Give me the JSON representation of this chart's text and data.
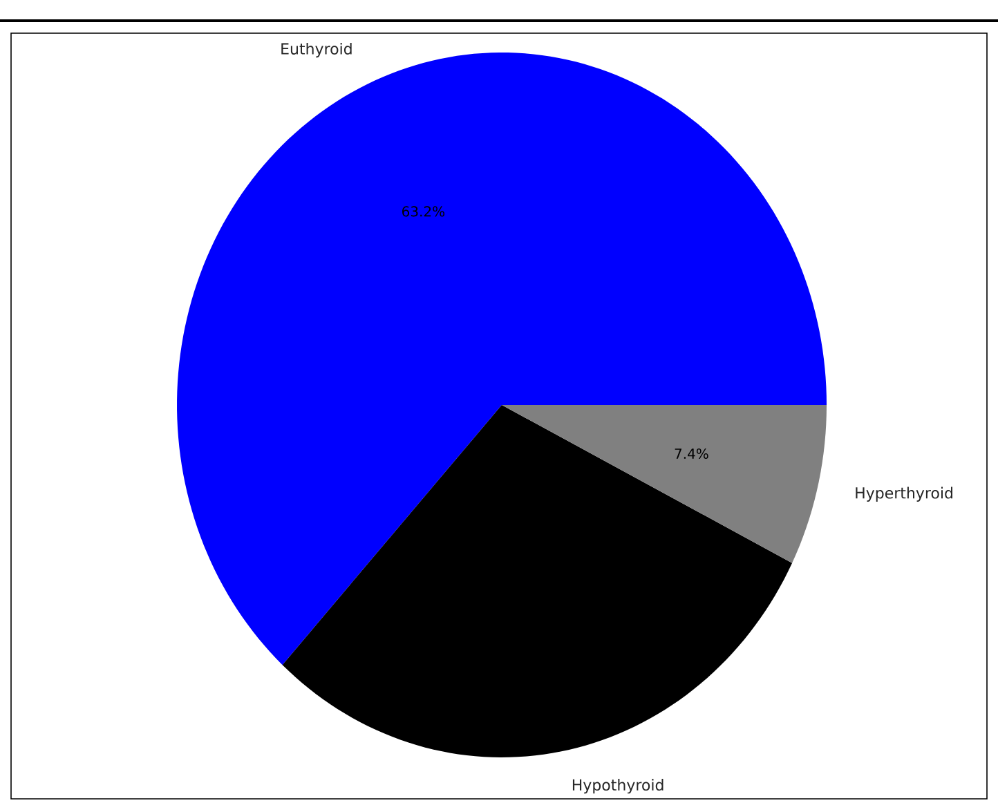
{
  "chart_data": {
    "type": "pie",
    "categories": [
      "Euthyroid",
      "Hypothyroid",
      "Hyperthyroid"
    ],
    "values": [
      63.2,
      29.4,
      7.4
    ],
    "colors": [
      "#0000ff",
      "#000000",
      "#808080"
    ],
    "value_labels": [
      "63.2%",
      null,
      "7.4%"
    ]
  }
}
